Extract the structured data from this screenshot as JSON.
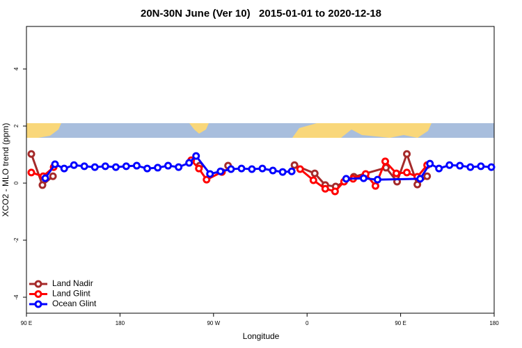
{
  "chart_data": {
    "type": "line",
    "title": "20N-30N June (Ver 10)   2015-01-01 to 2020-12-18",
    "xlabel": "Longitude",
    "ylabel": "XCO2 - MLO trend (ppm)",
    "xlim": [
      90,
      540
    ],
    "xticks": [
      {
        "value": 90,
        "label": "90 E"
      },
      180,
      {
        "value": 270,
        "label": "90 W"
      },
      {
        "value": 360,
        "label": "0"
      },
      {
        "value": 450,
        "label": "90 E"
      },
      {
        "value": 540,
        "label": "180"
      }
    ],
    "ylim": [
      -4.56,
      5.49
    ],
    "yticks": [
      4,
      2,
      0,
      -2,
      -4
    ],
    "legend": "bottomleft",
    "series": [
      {
        "name": "Land Nadir",
        "color": "#a52a2a",
        "x": [
          94.7,
          105.4,
          115.5,
          null,
          256.6,
          null,
          284,
          null,
          347.9,
          367.4,
          377.5,
          387.5,
          405,
          435.9,
          446.6,
          456,
          466.1,
          475.5
        ],
        "values": [
          1.02,
          -0.07,
          0.24,
          null,
          0.61,
          null,
          0.61,
          null,
          0.63,
          0.34,
          -0.07,
          -0.12,
          0.22,
          0.54,
          0.05,
          1.02,
          -0.05,
          0.24
        ]
      },
      {
        "name": "Land Glint",
        "color": "#ff0000",
        "x": [
          94.7,
          106.1,
          116.2,
          null,
          248.5,
          255.9,
          263.3,
          278.1,
          null,
          353.3,
          366.1,
          377.5,
          386.9,
          395.6,
          404.3,
          416.4,
          425.8,
          435.2,
          445.9,
          456,
          466.1,
          475.5
        ],
        "values": [
          0.37,
          0.24,
          0.56,
          null,
          0.8,
          0.51,
          0.12,
          0.39,
          null,
          0.49,
          0.1,
          -0.2,
          -0.29,
          0.05,
          0.15,
          0.32,
          -0.1,
          0.76,
          0.34,
          0.37,
          0.22,
          0.63
        ]
      },
      {
        "name": "Ocean Glint",
        "color": "#0000ff",
        "x": [
          108.1,
          117.5,
          126.3,
          135.7,
          145.7,
          155.8,
          165.9,
          176,
          186,
          196.1,
          206.2,
          216.3,
          226.3,
          236.4,
          246.5,
          253.2,
          266.6,
          276.7,
          286.8,
          296.9,
          306.9,
          317,
          327.1,
          336.5,
          345.2,
          null,
          397.6,
          414.4,
          427.8,
          468.8,
          478.2,
          486.9,
          497,
          507,
          517.1,
          527.2,
          537.3
        ],
        "values": [
          0.17,
          0.66,
          0.51,
          0.63,
          0.59,
          0.56,
          0.59,
          0.56,
          0.59,
          0.61,
          0.51,
          0.54,
          0.61,
          0.56,
          0.71,
          0.95,
          0.32,
          0.41,
          0.49,
          0.51,
          0.49,
          0.51,
          0.44,
          0.39,
          0.41,
          null,
          0.15,
          0.17,
          0.12,
          0.15,
          0.68,
          0.51,
          0.63,
          0.61,
          0.56,
          0.59,
          0.56
        ]
      }
    ]
  }
}
